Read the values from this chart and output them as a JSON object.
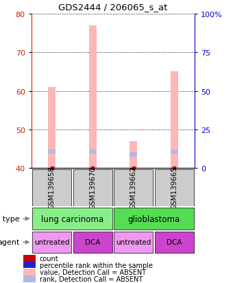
{
  "title": "GDS2444 / 206065_s_at",
  "samples": [
    "GSM139658",
    "GSM139670",
    "GSM139662",
    "GSM139665"
  ],
  "bar_tops_absent": [
    61,
    77,
    47,
    65
  ],
  "rank_absent": [
    44.3,
    44.3,
    43.5,
    44.3
  ],
  "ylim_left": [
    40,
    80
  ],
  "ylim_right": [
    0,
    100
  ],
  "yticks_left": [
    40,
    50,
    60,
    70,
    80
  ],
  "yticks_right": [
    0,
    25,
    50,
    75,
    100
  ],
  "ytick_labels_right": [
    "0",
    "25",
    "50",
    "75",
    "100%"
  ],
  "bar_color_absent": "#ffb6b6",
  "rank_color_absent": "#b4b8e0",
  "count_color": "#cc0000",
  "axis_color_left": "#cc2200",
  "axis_color_right": "#0000cc",
  "sample_box_color": "#cccccc",
  "bar_width": 0.18,
  "rank_bar_height": 1.2,
  "cell_spans": [
    {
      "label": "lung carcinoma",
      "start": 0,
      "end": 1,
      "color": "#88ee88"
    },
    {
      "label": "glioblastoma",
      "start": 2,
      "end": 3,
      "color": "#55dd55"
    }
  ],
  "agent_labels": [
    "untreated",
    "DCA",
    "untreated",
    "DCA"
  ],
  "agent_colors": {
    "untreated": "#ee99ee",
    "DCA": "#cc44cc"
  },
  "legend_labels": [
    "count",
    "percentile rank within the sample",
    "value, Detection Call = ABSENT",
    "rank, Detection Call = ABSENT"
  ],
  "legend_colors": [
    "#cc0000",
    "#2222cc",
    "#ffb6b6",
    "#b4b8e0"
  ]
}
